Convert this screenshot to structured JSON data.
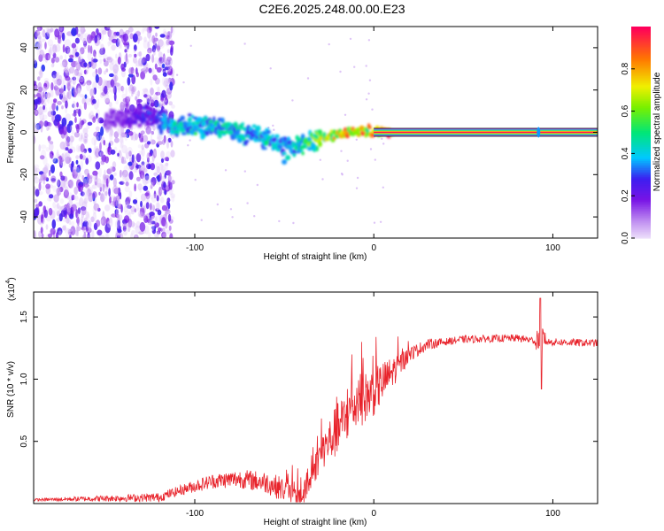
{
  "title": "C2E6.2025.248.00.00.E23",
  "chart_data": [
    {
      "type": "heatmap",
      "xlabel": "Height of straight line (km)",
      "ylabel": "Frequency (Hz)",
      "xlim": [
        -190,
        125
      ],
      "ylim": [
        -50,
        50
      ],
      "xticks": [
        -100,
        0,
        100
      ],
      "yticks": [
        -40,
        -20,
        0,
        20,
        40
      ],
      "colorbar": {
        "label": "Normalized spectral amplitude",
        "range": [
          0,
          1
        ],
        "ticks": [
          0.0,
          0.2,
          0.4,
          0.6,
          0.8
        ],
        "tick_labels": [
          "0.0",
          "0.2",
          "0.4",
          "0.6",
          "0.8"
        ]
      },
      "noise_region_x": [
        -190,
        -112
      ],
      "signal_ridge": [
        {
          "x": -140,
          "y": 6,
          "amp": 0.18
        },
        {
          "x": -125,
          "y": 8,
          "amp": 0.3
        },
        {
          "x": -112,
          "y": 3,
          "amp": 0.45
        },
        {
          "x": -100,
          "y": 3,
          "amp": 0.5
        },
        {
          "x": -90,
          "y": 2,
          "amp": 0.45
        },
        {
          "x": -80,
          "y": 1,
          "amp": 0.5
        },
        {
          "x": -70,
          "y": -1,
          "amp": 0.45
        },
        {
          "x": -60,
          "y": -3,
          "amp": 0.45
        },
        {
          "x": -50,
          "y": -6,
          "amp": 0.4
        },
        {
          "x": -45,
          "y": -7,
          "amp": 0.45
        },
        {
          "x": -40,
          "y": -5,
          "amp": 0.55
        },
        {
          "x": -30,
          "y": -3,
          "amp": 0.7
        },
        {
          "x": -20,
          "y": -1,
          "amp": 0.8
        },
        {
          "x": -10,
          "y": 1,
          "amp": 0.9
        },
        {
          "x": 0,
          "y": 0,
          "amp": 0.85
        },
        {
          "x": 5,
          "y": 0,
          "amp": 1.0
        },
        {
          "x": 125,
          "y": 0,
          "amp": 1.0
        }
      ]
    },
    {
      "type": "line",
      "xlabel": "Height of straight line (km)",
      "ylabel": "SNR (10 * v/v)",
      "y_multiplier": "(x10",
      "y_multiplier_exp": "4",
      "xlim": [
        -190,
        125
      ],
      "ylim": [
        0,
        1.7
      ],
      "xticks": [
        -100,
        0,
        100
      ],
      "yticks": [
        0.5,
        1.0,
        1.5
      ],
      "ytick_labels": [
        "0.5",
        "1.0",
        "1.5"
      ],
      "color": "#e8232b",
      "envelope": [
        {
          "x": -190,
          "y": 0.03
        },
        {
          "x": -120,
          "y": 0.05
        },
        {
          "x": -105,
          "y": 0.12
        },
        {
          "x": -90,
          "y": 0.18
        },
        {
          "x": -75,
          "y": 0.2
        },
        {
          "x": -60,
          "y": 0.17
        },
        {
          "x": -45,
          "y": 0.08
        },
        {
          "x": -40,
          "y": 0.05
        },
        {
          "x": -35,
          "y": 0.2
        },
        {
          "x": -30,
          "y": 0.4
        },
        {
          "x": -20,
          "y": 0.6
        },
        {
          "x": -10,
          "y": 0.8
        },
        {
          "x": 0,
          "y": 0.9
        },
        {
          "x": 10,
          "y": 1.05
        },
        {
          "x": 20,
          "y": 1.2
        },
        {
          "x": 30,
          "y": 1.28
        },
        {
          "x": 50,
          "y": 1.32
        },
        {
          "x": 80,
          "y": 1.33
        },
        {
          "x": 95,
          "y": 1.3
        },
        {
          "x": 125,
          "y": 1.29
        }
      ],
      "noise_amp": [
        {
          "x": -190,
          "y": 0.01
        },
        {
          "x": -110,
          "y": 0.04
        },
        {
          "x": -50,
          "y": 0.1
        },
        {
          "x": -35,
          "y": 0.1
        },
        {
          "x": -20,
          "y": 0.22
        },
        {
          "x": 0,
          "y": 0.2
        },
        {
          "x": 20,
          "y": 0.06
        },
        {
          "x": 40,
          "y": 0.03
        },
        {
          "x": 125,
          "y": 0.03
        }
      ],
      "spike": {
        "x": 93,
        "peak": 1.65,
        "dip": 0.92
      }
    }
  ]
}
